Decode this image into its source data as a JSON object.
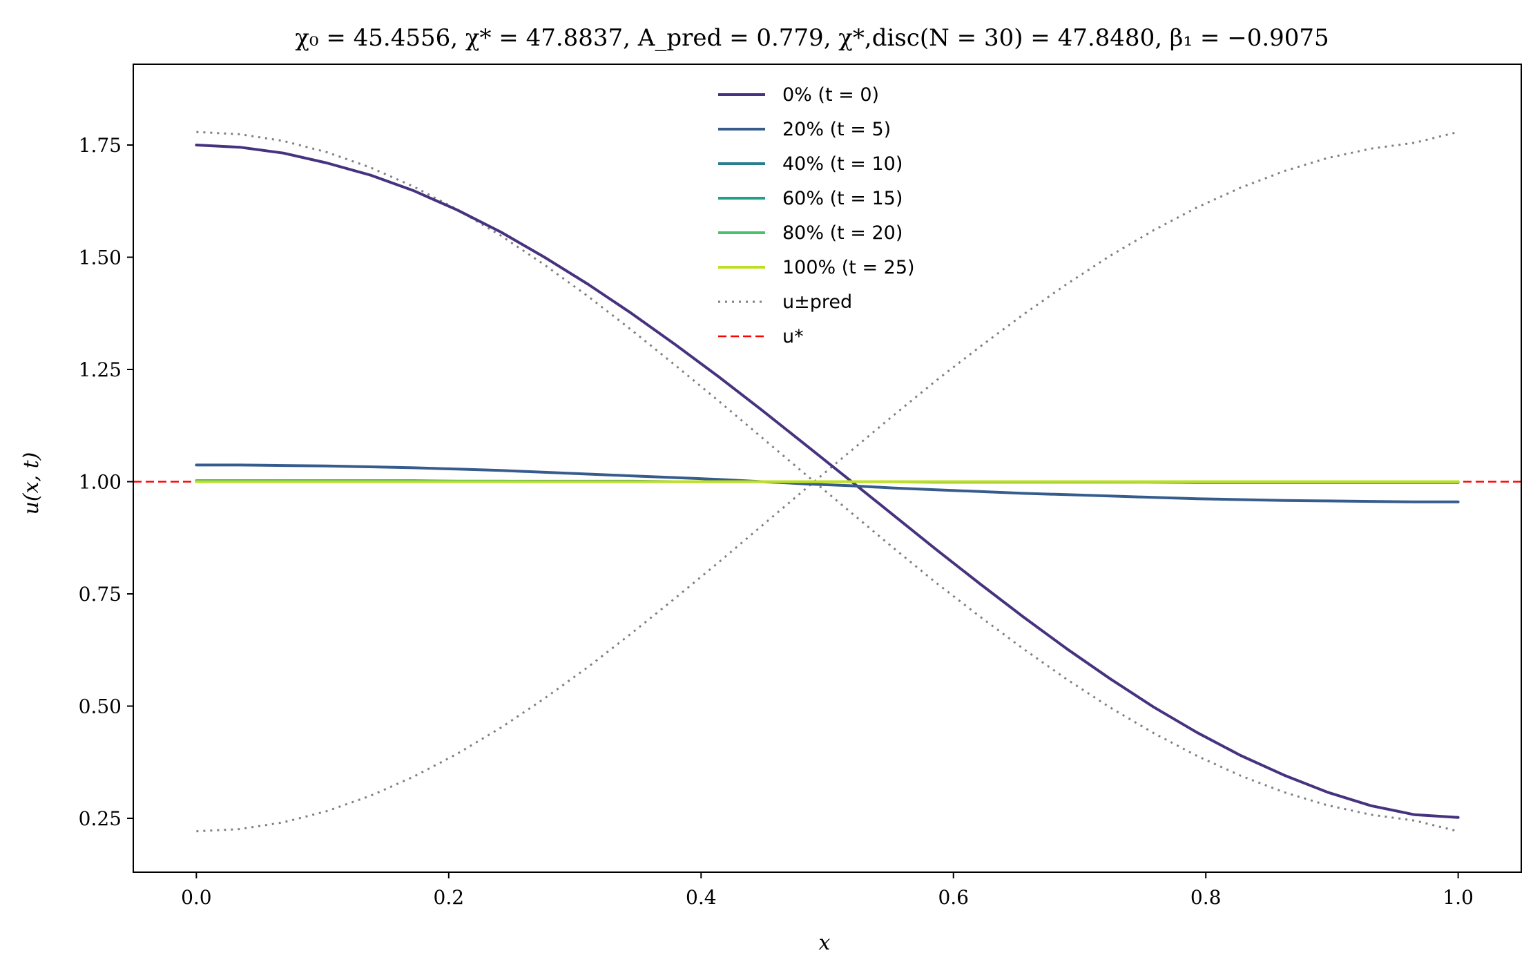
{
  "chart_data": {
    "type": "line",
    "title": "χ₀ = 45.4556,  χ* = 47.8837,  A_pred = 0.779,  χ*,disc(N = 30) = 47.8480,  β₁ = −0.9075",
    "xlabel": "x",
    "ylabel": "u(x, t)",
    "xlim": [
      -0.05,
      1.05
    ],
    "ylim": [
      0.13,
      1.93
    ],
    "xticks": [
      0.0,
      0.2,
      0.4,
      0.6,
      0.8,
      1.0
    ],
    "xtick_labels": [
      "0.0",
      "0.2",
      "0.4",
      "0.6",
      "0.8",
      "1.0"
    ],
    "yticks": [
      0.25,
      0.5,
      0.75,
      1.0,
      1.25,
      1.5,
      1.75
    ],
    "ytick_labels": [
      "0.25",
      "0.50",
      "0.75",
      "1.00",
      "1.25",
      "1.50",
      "1.75"
    ],
    "grid": false,
    "legend_position": "top-center",
    "x": [
      0.0,
      0.0345,
      0.069,
      0.1034,
      0.1379,
      0.1724,
      0.2069,
      0.2414,
      0.2759,
      0.3103,
      0.3448,
      0.3793,
      0.4138,
      0.4483,
      0.4828,
      0.5172,
      0.5517,
      0.5862,
      0.6207,
      0.6552,
      0.6897,
      0.7241,
      0.7586,
      0.7931,
      0.8276,
      0.8621,
      0.8966,
      0.931,
      0.9655,
      1.0
    ],
    "series": [
      {
        "name": "0% (t = 0)",
        "color": "#46327e",
        "width": 4,
        "dash": "solid",
        "values": [
          1.75,
          1.745,
          1.732,
          1.71,
          1.683,
          1.648,
          1.605,
          1.556,
          1.5,
          1.44,
          1.375,
          1.306,
          1.234,
          1.159,
          1.082,
          1.005,
          0.927,
          0.849,
          0.773,
          0.699,
          0.628,
          0.561,
          0.498,
          0.441,
          0.39,
          0.346,
          0.308,
          0.278,
          0.258,
          0.252
        ]
      },
      {
        "name": "20% (t = 5)",
        "color": "#365c8d",
        "width": 4,
        "dash": "solid",
        "values": [
          1.037,
          1.037,
          1.036,
          1.035,
          1.033,
          1.031,
          1.028,
          1.025,
          1.021,
          1.017,
          1.013,
          1.009,
          1.005,
          1.0,
          0.995,
          0.991,
          0.986,
          0.982,
          0.978,
          0.974,
          0.971,
          0.968,
          0.965,
          0.962,
          0.96,
          0.958,
          0.957,
          0.956,
          0.955,
          0.955
        ]
      },
      {
        "name": "40% (t = 10)",
        "color": "#277f8e",
        "width": 4,
        "dash": "solid",
        "values": [
          1.002,
          1.002,
          1.002,
          1.002,
          1.002,
          1.002,
          1.001,
          1.001,
          1.001,
          1.001,
          1.001,
          1.0,
          1.0,
          1.0,
          1.0,
          1.0,
          1.0,
          0.999,
          0.999,
          0.999,
          0.999,
          0.999,
          0.999,
          0.998,
          0.998,
          0.998,
          0.998,
          0.998,
          0.998,
          0.998
        ]
      },
      {
        "name": "60% (t = 15)",
        "color": "#1fa187",
        "width": 4,
        "dash": "solid",
        "values": [
          1.001,
          1.001,
          1.001,
          1.001,
          1.001,
          1.001,
          1.001,
          1.001,
          1.0,
          1.0,
          1.0,
          1.0,
          1.0,
          1.0,
          1.0,
          1.0,
          1.0,
          1.0,
          1.0,
          1.0,
          1.0,
          1.0,
          0.999,
          0.999,
          0.999,
          0.999,
          0.999,
          0.999,
          0.999,
          0.999
        ]
      },
      {
        "name": "80% (t = 20)",
        "color": "#4ac16d",
        "width": 4,
        "dash": "solid",
        "values": [
          1.0,
          1.0,
          1.0,
          1.0,
          1.0,
          1.0,
          1.0,
          1.0,
          1.0,
          1.0,
          1.0,
          1.0,
          1.0,
          1.0,
          1.0,
          1.0,
          1.0,
          1.0,
          1.0,
          1.0,
          1.0,
          1.0,
          1.0,
          1.0,
          1.0,
          1.0,
          1.0,
          1.0,
          1.0,
          1.0
        ]
      },
      {
        "name": "100% (t = 25)",
        "color": "#bddf26",
        "width": 4,
        "dash": "solid",
        "values": [
          1.0,
          1.0,
          1.0,
          1.0,
          1.0,
          1.0,
          1.0,
          1.0,
          1.0,
          1.0,
          1.0,
          1.0,
          1.0,
          1.0,
          1.0,
          1.0,
          1.0,
          1.0,
          1.0,
          1.0,
          1.0,
          1.0,
          1.0,
          1.0,
          1.0,
          1.0,
          1.0,
          1.0,
          1.0,
          1.0
        ]
      },
      {
        "name": "u±pred",
        "color": "#808080",
        "width": 3,
        "dash": "dotted",
        "values": [
          1.779,
          1.774,
          1.759,
          1.734,
          1.7,
          1.657,
          1.606,
          1.548,
          1.483,
          1.413,
          1.338,
          1.26,
          1.18,
          1.098,
          1.016,
          0.935,
          0.854,
          0.775,
          0.7,
          0.628,
          0.56,
          0.497,
          0.44,
          0.389,
          0.345,
          0.308,
          0.279,
          0.258,
          0.245,
          0.221
        ]
      },
      {
        "name": "",
        "color": "#808080",
        "width": 3,
        "dash": "dotted",
        "values": [
          0.221,
          0.226,
          0.241,
          0.266,
          0.3,
          0.343,
          0.394,
          0.452,
          0.517,
          0.587,
          0.662,
          0.74,
          0.82,
          0.902,
          0.984,
          1.065,
          1.146,
          1.225,
          1.3,
          1.372,
          1.44,
          1.503,
          1.56,
          1.611,
          1.655,
          1.692,
          1.721,
          1.742,
          1.755,
          1.779
        ]
      }
    ],
    "reference_line": {
      "name": "u*",
      "y": 1.0,
      "color": "#ff0000",
      "dash": "dashed"
    }
  }
}
